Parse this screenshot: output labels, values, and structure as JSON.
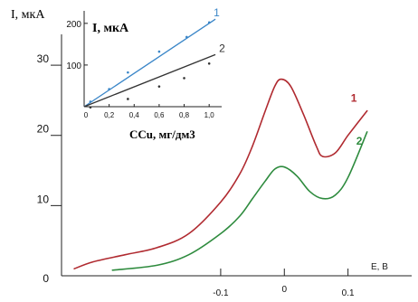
{
  "chart_data": [
    {
      "type": "line",
      "title": "",
      "xlabel": "E, B",
      "ylabel": "I, мкА",
      "xlim": [
        -0.35,
        0.2
      ],
      "ylim": [
        0,
        38
      ],
      "x_ticks": [
        {
          "value": -0.1,
          "label": "-0.1"
        },
        {
          "value": 0,
          "label": "0"
        },
        {
          "value": 0.1,
          "label": "0.1"
        }
      ],
      "y_ticks": [
        {
          "value": 0,
          "label": "0"
        },
        {
          "value": 10,
          "label": "10"
        },
        {
          "value": 20,
          "label": "20"
        },
        {
          "value": 30,
          "label": "30"
        }
      ],
      "grid": false,
      "legend": "labels at curve ends",
      "series": [
        {
          "name": "1",
          "color": "#b02a30",
          "x": [
            -0.33,
            -0.3,
            -0.25,
            -0.2,
            -0.15,
            -0.1,
            -0.07,
            -0.05,
            -0.03,
            -0.015,
            -0.005,
            0.01,
            0.03,
            0.05,
            0.06,
            0.08,
            0.1,
            0.13
          ],
          "y": [
            1.0,
            2.0,
            3.0,
            4.0,
            6.0,
            10.5,
            14.5,
            18.5,
            23.5,
            27.0,
            28.0,
            27.0,
            23.0,
            18.5,
            17.0,
            17.5,
            20.0,
            23.5
          ]
        },
        {
          "name": "2",
          "color": "#2e8b3e",
          "x": [
            -0.27,
            -0.2,
            -0.15,
            -0.1,
            -0.07,
            -0.05,
            -0.03,
            -0.015,
            0.0,
            0.02,
            0.04,
            0.06,
            0.08,
            0.1,
            0.13
          ],
          "y": [
            0.8,
            1.5,
            3.0,
            6.0,
            8.5,
            11.0,
            13.5,
            15.2,
            15.5,
            14.2,
            12.0,
            11.0,
            11.5,
            14.0,
            20.5
          ]
        }
      ]
    },
    {
      "type": "scatter",
      "title": "",
      "xlabel": "CCu, мг/дм3",
      "ylabel": "I, мкА",
      "xlim": [
        0,
        1.1
      ],
      "ylim": [
        0,
        230
      ],
      "x_ticks": [
        {
          "value": 0,
          "label": "0"
        },
        {
          "value": 0.2,
          "label": "0,2"
        },
        {
          "value": 0.4,
          "label": "0,4"
        },
        {
          "value": 0.6,
          "label": "0,6"
        },
        {
          "value": 0.8,
          "label": "0,8"
        },
        {
          "value": 1.0,
          "label": "1,0"
        }
      ],
      "y_ticks": [
        {
          "value": 100,
          "label": "100"
        },
        {
          "value": 200,
          "label": "200"
        }
      ],
      "grid": false,
      "legend": "labels at line ends",
      "series": [
        {
          "name": "1",
          "color": "#3a86c8",
          "x": [
            0.05,
            0.2,
            0.35,
            0.6,
            0.82,
            1.0
          ],
          "y": [
            10,
            40,
            80,
            130,
            165,
            200
          ],
          "trend": [
            [
              0.0,
              0.0
            ],
            [
              1.05,
              210
            ]
          ]
        },
        {
          "name": "2",
          "color": "#333333",
          "x": [
            0.05,
            0.35,
            0.6,
            0.8,
            1.0
          ],
          "y": [
            5,
            25,
            55,
            75,
            110
          ],
          "trend": [
            [
              0.0,
              0.0
            ],
            [
              1.05,
              125
            ]
          ]
        }
      ]
    }
  ]
}
